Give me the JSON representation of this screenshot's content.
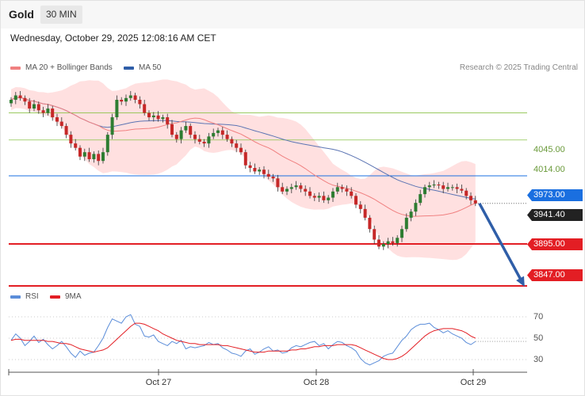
{
  "header": {
    "symbol": "Gold",
    "timeframe": "30 MIN",
    "datetime": "Wednesday, October 29, 2025 12:08:16 AM CET"
  },
  "legend": {
    "ma20_label": "MA 20 + Bollinger Bands",
    "ma50_label": "MA 50",
    "credit": "Research © 2025 Trading Central"
  },
  "rsi_legend": {
    "rsi_label": "RSI",
    "ma9_label": "9MA"
  },
  "colors": {
    "candle_up": "#2e7d32",
    "candle_down": "#c62828",
    "bollinger_fill": "#ffd6d6",
    "ma20": "#f08080",
    "ma50": "#5b74b3",
    "resistance": "#8bc34a",
    "pivot": "#1a6fe0",
    "support": "#e31e24",
    "rsi": "#5b8dd9",
    "rsi_ma": "#e31e24",
    "forecast_arrow": "#2f5ea8"
  },
  "chart_data": [
    {
      "type": "candlestick",
      "title": "Gold",
      "timeframe": "30 MIN",
      "x_ticks": [
        "Oct 27",
        "Oct 28",
        "Oct 29"
      ],
      "ylim": [
        3830,
        4090
      ],
      "close": [
        4060,
        4065,
        4062,
        4058,
        4050,
        4055,
        4048,
        4045,
        4050,
        4040,
        4035,
        4030,
        4020,
        4010,
        4005,
        3995,
        4000,
        3992,
        3998,
        3990,
        4000,
        4020,
        4040,
        4060,
        4058,
        4062,
        4065,
        4060,
        4055,
        4045,
        4040,
        4042,
        4038,
        4040,
        4032,
        4020,
        4015,
        4025,
        4030,
        4020,
        4015,
        4012,
        4010,
        4018,
        4022,
        4025,
        4020,
        4015,
        4010,
        4005,
        4000,
        3985,
        3982,
        3978,
        3980,
        3975,
        3972,
        3970,
        3960,
        3955,
        3958,
        3960,
        3962,
        3958,
        3955,
        3950,
        3948,
        3950,
        3945,
        3948,
        3955,
        3960,
        3958,
        3955,
        3950,
        3940,
        3935,
        3925,
        3912,
        3900,
        3892,
        3895,
        3898,
        3896,
        3902,
        3912,
        3925,
        3932,
        3942,
        3952,
        3960,
        3962,
        3963,
        3962,
        3958,
        3960,
        3960,
        3958,
        3956,
        3950,
        3945,
        3941.4
      ],
      "levels": [
        {
          "label": "4045.00",
          "value": 4045,
          "kind": "resistance"
        },
        {
          "label": "4014.00",
          "value": 4014,
          "kind": "resistance"
        },
        {
          "label": "3973.00",
          "value": 3973,
          "kind": "pivot"
        },
        {
          "label": "3941.40",
          "value": 3941.4,
          "kind": "last"
        },
        {
          "label": "3895.00",
          "value": 3895,
          "kind": "support"
        },
        {
          "label": "3847.00",
          "value": 3847,
          "kind": "support"
        }
      ],
      "forecast": {
        "from": 3941.4,
        "to": 3847
      },
      "series": [
        {
          "name": "MA 20 + Bollinger Bands"
        },
        {
          "name": "MA 50"
        }
      ]
    },
    {
      "type": "line",
      "yticks": [
        "70",
        "50",
        "30"
      ],
      "ylim": [
        20,
        80
      ],
      "series": [
        {
          "name": "RSI",
          "values": [
            48,
            54,
            50,
            43,
            47,
            52,
            46,
            49,
            44,
            40,
            43,
            47,
            42,
            36,
            32,
            38,
            34,
            36,
            37,
            43,
            50,
            60,
            68,
            66,
            64,
            70,
            72,
            63,
            61,
            52,
            51,
            53,
            47,
            45,
            43,
            47,
            45,
            48,
            40,
            42,
            41,
            42,
            43,
            46,
            44,
            45,
            41,
            39,
            36,
            35,
            33,
            38,
            40,
            35,
            37,
            40,
            42,
            38,
            39,
            36,
            37,
            41,
            43,
            42,
            44,
            46,
            47,
            43,
            45,
            40,
            44,
            47,
            46,
            43,
            41,
            38,
            31,
            27,
            25,
            27,
            29,
            33,
            35,
            36,
            42,
            48,
            52,
            58,
            61,
            63,
            63,
            64,
            60,
            58,
            55,
            57,
            54,
            52,
            50,
            46,
            44,
            47
          ]
        },
        {
          "name": "9MA",
          "values": [
            48,
            49,
            49,
            48,
            48,
            48,
            48,
            48,
            47,
            47,
            46,
            45,
            45,
            44,
            42,
            40,
            39,
            38,
            37,
            38,
            39,
            41,
            45,
            49,
            53,
            57,
            61,
            64,
            64,
            63,
            61,
            59,
            57,
            54,
            52,
            50,
            48,
            47,
            46,
            45,
            45,
            44,
            44,
            44,
            44,
            44,
            43,
            43,
            42,
            41,
            40,
            39,
            38,
            37,
            37,
            37,
            38,
            38,
            38,
            38,
            38,
            39,
            39,
            40,
            40,
            41,
            42,
            42,
            43,
            43,
            43,
            44,
            44,
            44,
            44,
            43,
            41,
            39,
            37,
            35,
            33,
            31,
            30,
            30,
            31,
            33,
            36,
            40,
            44,
            48,
            52,
            55,
            57,
            58,
            59,
            59,
            59,
            58,
            57,
            55,
            52,
            50
          ]
        }
      ]
    }
  ]
}
